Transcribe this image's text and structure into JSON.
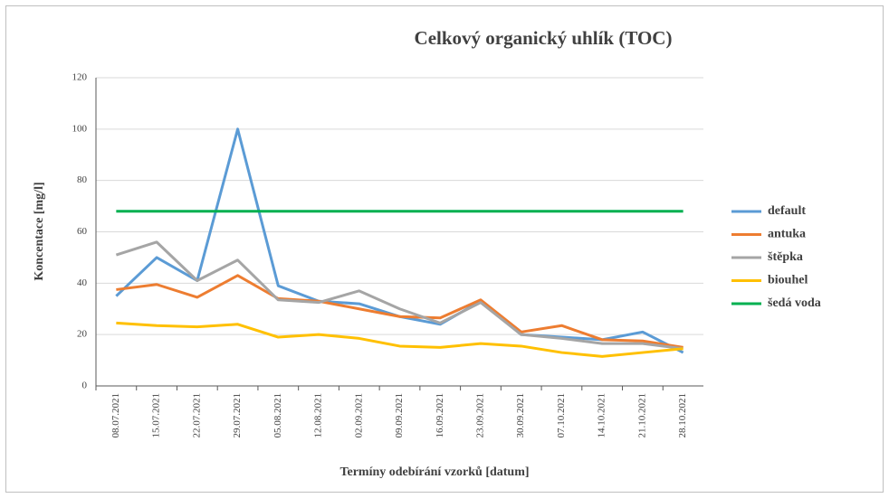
{
  "chart_data": {
    "type": "line",
    "title": "Celkový organický uhlík (TOC)",
    "x_label": "Termíny odebírání vzorků [datum]",
    "y_label": "Koncentace [mg/l]",
    "categories": [
      "08.07.2021",
      "15.07.2021",
      "22.07.2021",
      "29.07.2021",
      "05.08.2021",
      "12.08.2021",
      "02.09.2021",
      "09.09.2021",
      "16.09.2021",
      "23.09.2021",
      "30.09.2021",
      "07.10.2021",
      "14.10.2021",
      "21.10.2021",
      "28.10.2021"
    ],
    "series": [
      {
        "name": "default",
        "color": "#5b9bd5",
        "values": [
          35,
          50,
          41,
          100,
          39,
          33,
          32,
          27,
          24,
          33,
          20,
          19,
          18,
          21,
          13
        ]
      },
      {
        "name": "antuka",
        "color": "#ed7d31",
        "values": [
          37.5,
          39.5,
          34.5,
          43,
          34,
          33,
          30,
          27,
          26.5,
          33.5,
          21,
          23.5,
          18,
          17.5,
          15
        ]
      },
      {
        "name": "štěpka",
        "color": "#a5a5a5",
        "values": [
          51,
          56,
          41,
          49,
          33.5,
          32.5,
          37,
          30,
          24.5,
          32.5,
          20,
          18.5,
          16.5,
          16.5,
          14.5
        ]
      },
      {
        "name": "biouhel",
        "color": "#ffc000",
        "values": [
          24.5,
          23.5,
          23,
          24,
          19,
          20,
          18.5,
          15.5,
          15,
          16.5,
          15.5,
          13,
          11.5,
          13,
          14.5
        ]
      },
      {
        "name": "šedá voda",
        "color": "#00b050",
        "values": [
          68,
          68,
          68,
          68,
          68,
          68,
          68,
          68,
          68,
          68,
          68,
          68,
          68,
          68,
          68
        ]
      }
    ],
    "ylim": [
      0,
      120
    ],
    "yticks": [
      0,
      20,
      40,
      60,
      80,
      100,
      120
    ],
    "grid": true,
    "legend": "right"
  }
}
